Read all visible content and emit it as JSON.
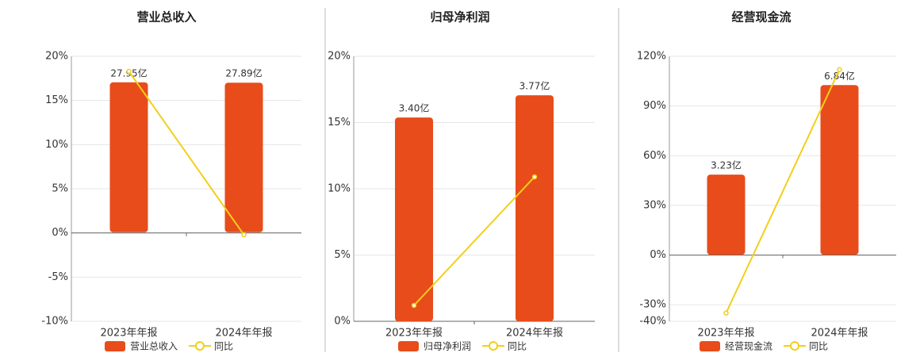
{
  "chart_data": [
    {
      "type": "bar",
      "title": "营业总收入",
      "categories": [
        "2023年年报",
        "2024年年报"
      ],
      "series": [
        {
          "name": "营业总收入",
          "color": "#e84c1a",
          "values": [
            27.95,
            27.89
          ],
          "value_labels": [
            "27.95亿",
            "27.89亿"
          ],
          "axis": "y2"
        },
        {
          "name": "同比",
          "type": "line",
          "color": "#f2cf1a",
          "values": [
            18.3,
            -0.2
          ]
        }
      ],
      "ylim": [
        -10,
        20
      ],
      "yticks": [
        {
          "value": -10,
          "label": "-10%"
        },
        {
          "value": -5,
          "label": "-5%"
        },
        {
          "value": 0,
          "label": "0%"
        },
        {
          "value": 5,
          "label": "5%"
        },
        {
          "value": 10,
          "label": "10%"
        },
        {
          "value": 15,
          "label": "15%"
        },
        {
          "value": 20,
          "label": "20%"
        }
      ],
      "y2lim": [
        -16.6,
        32.8
      ],
      "grid": true
    },
    {
      "type": "bar",
      "title": "归母净利润",
      "categories": [
        "2023年年报",
        "2024年年报"
      ],
      "series": [
        {
          "name": "归母净利润",
          "color": "#e84c1a",
          "values": [
            3.4,
            3.77
          ],
          "value_labels": [
            "3.40亿",
            "3.77亿"
          ],
          "axis": "y2"
        },
        {
          "name": "同比",
          "type": "line",
          "color": "#f2cf1a",
          "values": [
            1.2,
            10.9
          ]
        }
      ],
      "ylim": [
        0,
        20
      ],
      "yticks": [
        {
          "value": 0,
          "label": "0%"
        },
        {
          "value": 5,
          "label": "5%"
        },
        {
          "value": 10,
          "label": "10%"
        },
        {
          "value": 15,
          "label": "15%"
        },
        {
          "value": 20,
          "label": "20%"
        }
      ],
      "y2lim": [
        0,
        4.42
      ],
      "grid": true
    },
    {
      "type": "bar",
      "title": "经营现金流",
      "categories": [
        "2023年年报",
        "2024年年报"
      ],
      "series": [
        {
          "name": "经营现金流",
          "color": "#e84c1a",
          "values": [
            3.23,
            6.84
          ],
          "value_labels": [
            "3.23亿",
            "6.84亿"
          ],
          "axis": "y2"
        },
        {
          "name": "同比",
          "type": "line",
          "color": "#f2cf1a",
          "values": [
            -35,
            112
          ]
        }
      ],
      "ylim": [
        -40,
        120
      ],
      "yticks": [
        {
          "value": -40,
          "label": "-40%"
        },
        {
          "value": -30,
          "label": "-30%"
        },
        {
          "value": 0,
          "label": "0%"
        },
        {
          "value": 30,
          "label": "30%"
        },
        {
          "value": 60,
          "label": "60%"
        },
        {
          "value": 90,
          "label": "90%"
        },
        {
          "value": 120,
          "label": "120%"
        }
      ],
      "y2lim": [
        -2.68,
        8
      ],
      "grid": true
    }
  ]
}
